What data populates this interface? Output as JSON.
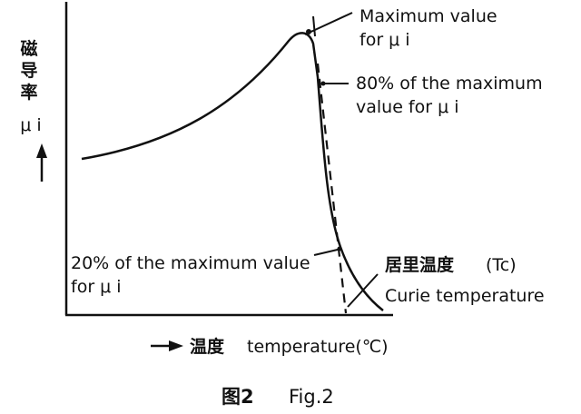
{
  "figure": {
    "y_axis_label_cn": [
      "磁",
      "导",
      "率"
    ],
    "y_axis_symbol": "μ i",
    "x_axis_label_cn": "温度",
    "x_axis_label_en": "temperature(℃)",
    "annotations": {
      "max_line1": "Maximum value",
      "max_line2": "for  μ i",
      "p80_line1": "80% of the maximum",
      "p80_line2": "value for  μ i",
      "p20_line1": "20% of the maximum value",
      "p20_line2": "for  μ i",
      "curie_cn": "居里温度",
      "curie_tc": "(Tc)",
      "curie_en": "Curie temperature"
    },
    "caption_cn": "图2",
    "caption_en": "Fig.2"
  }
}
